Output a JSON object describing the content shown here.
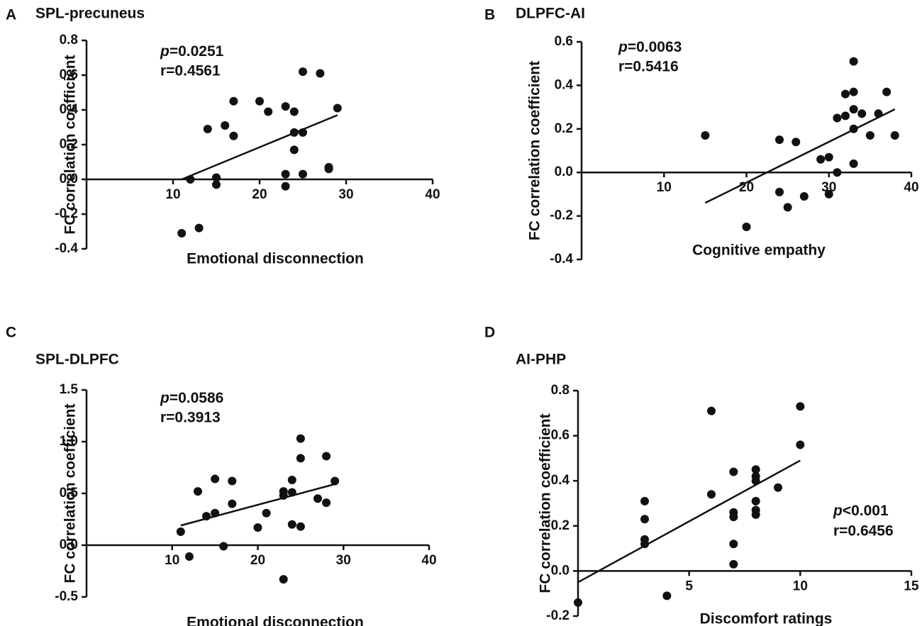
{
  "chart_data": [
    {
      "type": "scatter",
      "panel": "A",
      "title": "SPL-precuneus",
      "xlabel": "Emotional disconnection",
      "ylabel": "FC correlation coefficient",
      "xlim": [
        0,
        40
      ],
      "ylim": [
        -0.4,
        0.8
      ],
      "xticks": [
        10,
        20,
        30,
        40
      ],
      "yticks": [
        -0.4,
        -0.2,
        0.0,
        0.2,
        0.4,
        0.6,
        0.8
      ],
      "ytick_labels": [
        "-0.4",
        "-0.2",
        "0.0",
        "0.2",
        "0.4",
        "0.6",
        "0.8"
      ],
      "stat_p": "=0.0251",
      "stat_r": "r=0.4561",
      "fit_line": [
        [
          11,
          0.0
        ],
        [
          29,
          0.37
        ]
      ],
      "points": [
        [
          11,
          -0.31
        ],
        [
          12,
          0.0
        ],
        [
          13,
          -0.28
        ],
        [
          14,
          0.29
        ],
        [
          15,
          0.01
        ],
        [
          15,
          -0.03
        ],
        [
          16,
          0.31
        ],
        [
          17,
          0.25
        ],
        [
          17,
          0.45
        ],
        [
          20,
          0.45
        ],
        [
          21,
          0.39
        ],
        [
          23,
          0.42
        ],
        [
          23,
          0.03
        ],
        [
          23,
          -0.04
        ],
        [
          24,
          0.39
        ],
        [
          24,
          0.27
        ],
        [
          24,
          0.17
        ],
        [
          25,
          0.62
        ],
        [
          25,
          0.27
        ],
        [
          25,
          0.03
        ],
        [
          27,
          0.61
        ],
        [
          28,
          0.07
        ],
        [
          28,
          0.06
        ],
        [
          29,
          0.41
        ]
      ]
    },
    {
      "type": "scatter",
      "panel": "B",
      "title": "DLPFC-AI",
      "xlabel": "Cognitive empathy",
      "ylabel": "FC correlation coefficient",
      "xlim": [
        0,
        40
      ],
      "ylim": [
        -0.4,
        0.6
      ],
      "xticks": [
        10,
        20,
        30,
        40
      ],
      "yticks": [
        -0.4,
        -0.2,
        0.0,
        0.2,
        0.4,
        0.6
      ],
      "ytick_labels": [
        "-0.4",
        "-0.2",
        "0.0",
        "0.2",
        "0.4",
        "0.6"
      ],
      "stat_p": "=0.0063",
      "stat_r": "r=0.5416",
      "fit_line": [
        [
          15,
          -0.14
        ],
        [
          38,
          0.29
        ]
      ],
      "points": [
        [
          15,
          0.17
        ],
        [
          20,
          -0.25
        ],
        [
          24,
          0.15
        ],
        [
          24,
          -0.09
        ],
        [
          25,
          -0.16
        ],
        [
          26,
          0.14
        ],
        [
          27,
          -0.11
        ],
        [
          29,
          0.06
        ],
        [
          30,
          0.07
        ],
        [
          30,
          -0.1
        ],
        [
          31,
          0.25
        ],
        [
          31,
          0.0
        ],
        [
          32,
          0.36
        ],
        [
          32,
          0.26
        ],
        [
          33,
          0.51
        ],
        [
          33,
          0.37
        ],
        [
          33,
          0.29
        ],
        [
          33,
          0.2
        ],
        [
          33,
          0.04
        ],
        [
          34,
          0.27
        ],
        [
          35,
          0.17
        ],
        [
          36,
          0.27
        ],
        [
          37,
          0.37
        ],
        [
          38,
          0.17
        ]
      ]
    },
    {
      "type": "scatter",
      "panel": "C",
      "title": "SPL-DLPFC",
      "xlabel": "Emotional disconnection",
      "ylabel": "FC correlation coefficient",
      "xlim": [
        0,
        40
      ],
      "ylim": [
        -0.5,
        1.5
      ],
      "xticks": [
        10,
        20,
        30,
        40
      ],
      "yticks": [
        -0.5,
        0.0,
        0.5,
        1.0,
        1.5
      ],
      "ytick_labels": [
        "-0.5",
        "0.0",
        "0.5",
        "1.0",
        "1.5"
      ],
      "stat_p": "=0.0586",
      "stat_r": "r=0.3913",
      "fit_line": [
        [
          11,
          0.19
        ],
        [
          29,
          0.59
        ]
      ],
      "points": [
        [
          11,
          0.13
        ],
        [
          12,
          -0.11
        ],
        [
          13,
          0.52
        ],
        [
          14,
          0.28
        ],
        [
          15,
          0.64
        ],
        [
          15,
          0.31
        ],
        [
          16,
          -0.01
        ],
        [
          17,
          0.62
        ],
        [
          17,
          0.4
        ],
        [
          20,
          0.17
        ],
        [
          21,
          0.31
        ],
        [
          23,
          0.52
        ],
        [
          23,
          0.48
        ],
        [
          23,
          -0.33
        ],
        [
          24,
          0.63
        ],
        [
          24,
          0.51
        ],
        [
          24,
          0.2
        ],
        [
          25,
          1.03
        ],
        [
          25,
          0.84
        ],
        [
          25,
          0.18
        ],
        [
          27,
          0.45
        ],
        [
          28,
          0.86
        ],
        [
          28,
          0.41
        ],
        [
          29,
          0.62
        ]
      ]
    },
    {
      "type": "scatter",
      "panel": "D",
      "title": "AI-PHP",
      "xlabel": "Discomfort ratings",
      "ylabel": "FC correlation coefficient",
      "xlim": [
        0,
        15
      ],
      "ylim": [
        -0.2,
        0.8
      ],
      "xticks": [
        5,
        10,
        15
      ],
      "yticks": [
        -0.2,
        0.0,
        0.2,
        0.4,
        0.6,
        0.8
      ],
      "ytick_labels": [
        "-0.2",
        "0.0",
        "0.2",
        "0.4",
        "0.6",
        "0.8"
      ],
      "stat_p": "<0.001",
      "stat_r": "r=0.6456",
      "fit_line": [
        [
          0,
          -0.05
        ],
        [
          10,
          0.49
        ]
      ],
      "points": [
        [
          0,
          -0.14
        ],
        [
          3,
          0.31
        ],
        [
          3,
          0.23
        ],
        [
          3,
          0.14
        ],
        [
          3,
          0.12
        ],
        [
          4,
          -0.11
        ],
        [
          6,
          0.71
        ],
        [
          6,
          0.34
        ],
        [
          7,
          0.44
        ],
        [
          7,
          0.26
        ],
        [
          7,
          0.24
        ],
        [
          7,
          0.12
        ],
        [
          7,
          0.03
        ],
        [
          8,
          0.45
        ],
        [
          8,
          0.42
        ],
        [
          8,
          0.4
        ],
        [
          8,
          0.31
        ],
        [
          8,
          0.27
        ],
        [
          8,
          0.25
        ],
        [
          9,
          0.37
        ],
        [
          10,
          0.73
        ],
        [
          10,
          0.56
        ]
      ]
    }
  ]
}
